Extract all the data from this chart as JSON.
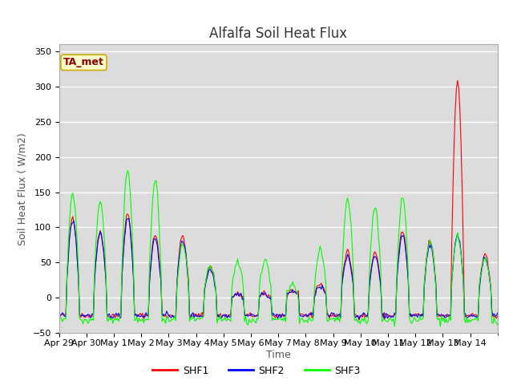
{
  "title": "Alfalfa Soil Heat Flux",
  "ylabel": "Soil Heat Flux ( W/m2)",
  "xlabel": "Time",
  "ylim": [
    -50,
    360
  ],
  "yticks": [
    -50,
    0,
    50,
    100,
    150,
    200,
    250,
    300,
    350
  ],
  "xtick_labels": [
    "Apr 29",
    "Apr 30",
    "May 1",
    "May 2",
    "May 3",
    "May 4",
    "May 5",
    "May 6",
    "May 7",
    "May 8",
    "May 9",
    "May 10",
    "May 11",
    "May 12",
    "May 13",
    "May 14"
  ],
  "colors": {
    "SHF1": "#ff0000",
    "SHF2": "#0000ff",
    "SHF3": "#00ff00"
  },
  "annotation_text": "TA_met",
  "annotation_color": "#8b0000",
  "annotation_bg": "#ffffcc",
  "bg_color": "#dcdcdc",
  "title_fontsize": 12,
  "axis_label_fontsize": 9,
  "tick_fontsize": 8,
  "linewidth": 0.8,
  "n_days": 16,
  "shf1_peaks": [
    115,
    95,
    120,
    90,
    88,
    45,
    5,
    5,
    10,
    20,
    65,
    65,
    95,
    80,
    310,
    60
  ],
  "shf2_peaks": [
    110,
    90,
    115,
    85,
    80,
    40,
    5,
    5,
    10,
    15,
    60,
    60,
    90,
    75,
    90,
    55
  ],
  "shf3_peaks": [
    148,
    138,
    182,
    168,
    75,
    45,
    52,
    55,
    20,
    68,
    140,
    128,
    143,
    80,
    85,
    55
  ],
  "night_val_shf1": -25,
  "night_val_shf2": -25,
  "night_val_shf3": -32
}
